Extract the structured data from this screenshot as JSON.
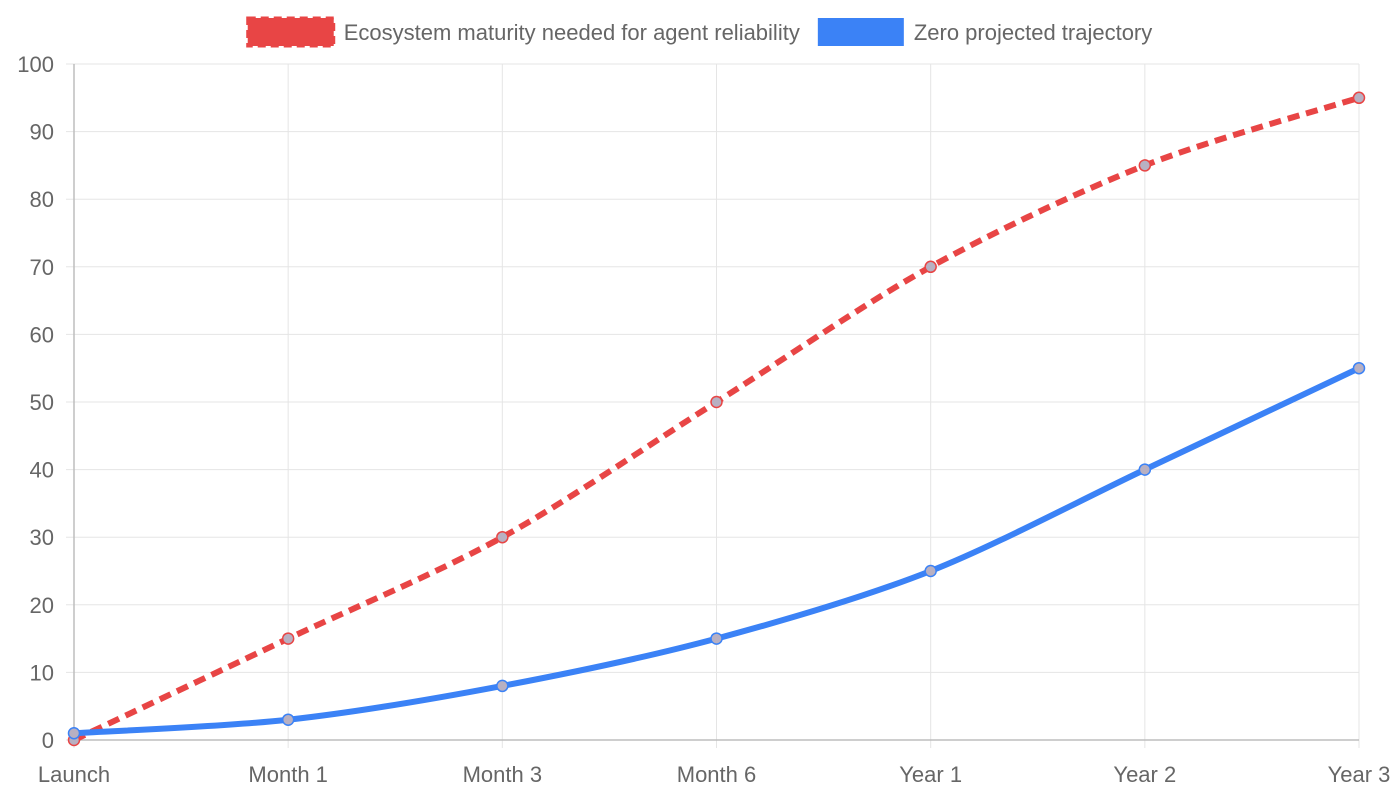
{
  "chart_data": {
    "type": "line",
    "categories": [
      "Launch",
      "Month 1",
      "Month 3",
      "Month 6",
      "Year 1",
      "Year 2",
      "Year 3"
    ],
    "ylim": [
      0,
      100
    ],
    "yticks": [
      0,
      10,
      20,
      30,
      40,
      50,
      60,
      70,
      80,
      90,
      100
    ],
    "grid": true,
    "legend_position": "top-center",
    "series": [
      {
        "name": "Ecosystem maturity needed for agent reliability",
        "values": [
          0,
          15,
          30,
          50,
          70,
          85,
          95
        ],
        "color": "#e84545",
        "style": "dashed"
      },
      {
        "name": "Zero projected trajectory",
        "values": [
          1,
          3,
          8,
          15,
          25,
          40,
          55
        ],
        "color": "#3b82f6",
        "style": "solid"
      }
    ]
  }
}
